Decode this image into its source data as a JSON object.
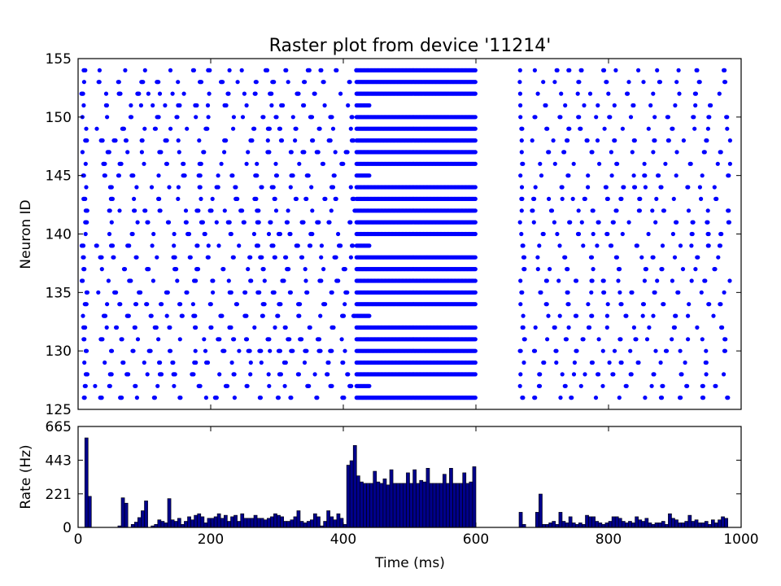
{
  "chart_data": [
    {
      "type": "scatter",
      "title": "Raster plot from device '11214'",
      "xlabel": "",
      "ylabel": "Neuron ID",
      "xlim": [
        0,
        1000
      ],
      "ylim": [
        125,
        155
      ],
      "yticks": [
        "125",
        "130",
        "135",
        "140",
        "145",
        "150",
        "155"
      ],
      "marker_color": "#0000ff",
      "neurons": [
        126,
        127,
        128,
        129,
        130,
        131,
        132,
        133,
        134,
        135,
        136,
        137,
        138,
        139,
        140,
        141,
        142,
        143,
        144,
        145,
        146,
        147,
        148,
        149,
        150,
        151,
        152,
        153,
        154
      ],
      "high_rate_window_ms": [
        420,
        600
      ],
      "silent_window_ms": [
        600,
        665
      ]
    },
    {
      "type": "bar",
      "xlabel": "Time (ms)",
      "ylabel": "Rate (Hz)",
      "xlim": [
        0,
        1000
      ],
      "ylim": [
        0,
        665
      ],
      "yticks": [
        "0",
        "221",
        "443",
        "665"
      ],
      "xticks": [
        "0",
        "200",
        "400",
        "600",
        "800",
        "1000"
      ],
      "bin_width_ms": 5,
      "bar_color": "#00008b",
      "bins": [
        {
          "t": 10,
          "rate": 590
        },
        {
          "t": 15,
          "rate": 205
        },
        {
          "t": 60,
          "rate": 10
        },
        {
          "t": 65,
          "rate": 195
        },
        {
          "t": 70,
          "rate": 160
        },
        {
          "t": 80,
          "rate": 20
        },
        {
          "t": 85,
          "rate": 35
        },
        {
          "t": 90,
          "rate": 65
        },
        {
          "t": 95,
          "rate": 110
        },
        {
          "t": 100,
          "rate": 175
        },
        {
          "t": 110,
          "rate": 10
        },
        {
          "t": 115,
          "rate": 20
        },
        {
          "t": 120,
          "rate": 50
        },
        {
          "t": 125,
          "rate": 40
        },
        {
          "t": 130,
          "rate": 30
        },
        {
          "t": 135,
          "rate": 190
        },
        {
          "t": 140,
          "rate": 50
        },
        {
          "t": 145,
          "rate": 40
        },
        {
          "t": 150,
          "rate": 60
        },
        {
          "t": 155,
          "rate": 20
        },
        {
          "t": 160,
          "rate": 40
        },
        {
          "t": 165,
          "rate": 70
        },
        {
          "t": 170,
          "rate": 50
        },
        {
          "t": 175,
          "rate": 80
        },
        {
          "t": 180,
          "rate": 90
        },
        {
          "t": 185,
          "rate": 70
        },
        {
          "t": 190,
          "rate": 30
        },
        {
          "t": 195,
          "rate": 60
        },
        {
          "t": 200,
          "rate": 60
        },
        {
          "t": 205,
          "rate": 70
        },
        {
          "t": 210,
          "rate": 90
        },
        {
          "t": 215,
          "rate": 60
        },
        {
          "t": 220,
          "rate": 80
        },
        {
          "t": 225,
          "rate": 40
        },
        {
          "t": 230,
          "rate": 70
        },
        {
          "t": 235,
          "rate": 80
        },
        {
          "t": 240,
          "rate": 40
        },
        {
          "t": 245,
          "rate": 90
        },
        {
          "t": 250,
          "rate": 60
        },
        {
          "t": 255,
          "rate": 60
        },
        {
          "t": 260,
          "rate": 60
        },
        {
          "t": 265,
          "rate": 80
        },
        {
          "t": 270,
          "rate": 60
        },
        {
          "t": 275,
          "rate": 60
        },
        {
          "t": 280,
          "rate": 50
        },
        {
          "t": 285,
          "rate": 60
        },
        {
          "t": 290,
          "rate": 70
        },
        {
          "t": 295,
          "rate": 90
        },
        {
          "t": 300,
          "rate": 80
        },
        {
          "t": 305,
          "rate": 70
        },
        {
          "t": 310,
          "rate": 40
        },
        {
          "t": 315,
          "rate": 40
        },
        {
          "t": 320,
          "rate": 50
        },
        {
          "t": 325,
          "rate": 70
        },
        {
          "t": 330,
          "rate": 110
        },
        {
          "t": 335,
          "rate": 40
        },
        {
          "t": 340,
          "rate": 30
        },
        {
          "t": 345,
          "rate": 40
        },
        {
          "t": 350,
          "rate": 50
        },
        {
          "t": 355,
          "rate": 90
        },
        {
          "t": 360,
          "rate": 70
        },
        {
          "t": 365,
          "rate": 10
        },
        {
          "t": 370,
          "rate": 40
        },
        {
          "t": 375,
          "rate": 110
        },
        {
          "t": 380,
          "rate": 70
        },
        {
          "t": 385,
          "rate": 50
        },
        {
          "t": 390,
          "rate": 90
        },
        {
          "t": 395,
          "rate": 60
        },
        {
          "t": 400,
          "rate": 20
        },
        {
          "t": 405,
          "rate": 410
        },
        {
          "t": 410,
          "rate": 440
        },
        {
          "t": 415,
          "rate": 540
        },
        {
          "t": 420,
          "rate": 340
        },
        {
          "t": 425,
          "rate": 300
        },
        {
          "t": 430,
          "rate": 290
        },
        {
          "t": 435,
          "rate": 290
        },
        {
          "t": 440,
          "rate": 290
        },
        {
          "t": 445,
          "rate": 370
        },
        {
          "t": 450,
          "rate": 300
        },
        {
          "t": 455,
          "rate": 290
        },
        {
          "t": 460,
          "rate": 320
        },
        {
          "t": 465,
          "rate": 280
        },
        {
          "t": 470,
          "rate": 380
        },
        {
          "t": 475,
          "rate": 290
        },
        {
          "t": 480,
          "rate": 290
        },
        {
          "t": 485,
          "rate": 290
        },
        {
          "t": 490,
          "rate": 290
        },
        {
          "t": 495,
          "rate": 360
        },
        {
          "t": 500,
          "rate": 290
        },
        {
          "t": 505,
          "rate": 380
        },
        {
          "t": 510,
          "rate": 290
        },
        {
          "t": 515,
          "rate": 310
        },
        {
          "t": 520,
          "rate": 300
        },
        {
          "t": 525,
          "rate": 390
        },
        {
          "t": 530,
          "rate": 290
        },
        {
          "t": 535,
          "rate": 290
        },
        {
          "t": 540,
          "rate": 290
        },
        {
          "t": 545,
          "rate": 290
        },
        {
          "t": 550,
          "rate": 350
        },
        {
          "t": 555,
          "rate": 290
        },
        {
          "t": 560,
          "rate": 390
        },
        {
          "t": 565,
          "rate": 290
        },
        {
          "t": 570,
          "rate": 290
        },
        {
          "t": 575,
          "rate": 290
        },
        {
          "t": 580,
          "rate": 360
        },
        {
          "t": 585,
          "rate": 290
        },
        {
          "t": 590,
          "rate": 300
        },
        {
          "t": 595,
          "rate": 400
        },
        {
          "t": 665,
          "rate": 100
        },
        {
          "t": 670,
          "rate": 20
        },
        {
          "t": 690,
          "rate": 100
        },
        {
          "t": 695,
          "rate": 220
        },
        {
          "t": 700,
          "rate": 20
        },
        {
          "t": 705,
          "rate": 20
        },
        {
          "t": 710,
          "rate": 30
        },
        {
          "t": 715,
          "rate": 40
        },
        {
          "t": 720,
          "rate": 20
        },
        {
          "t": 725,
          "rate": 100
        },
        {
          "t": 730,
          "rate": 40
        },
        {
          "t": 735,
          "rate": 30
        },
        {
          "t": 740,
          "rate": 70
        },
        {
          "t": 745,
          "rate": 30
        },
        {
          "t": 750,
          "rate": 20
        },
        {
          "t": 755,
          "rate": 30
        },
        {
          "t": 760,
          "rate": 20
        },
        {
          "t": 765,
          "rate": 80
        },
        {
          "t": 770,
          "rate": 70
        },
        {
          "t": 775,
          "rate": 70
        },
        {
          "t": 780,
          "rate": 40
        },
        {
          "t": 785,
          "rate": 30
        },
        {
          "t": 790,
          "rate": 20
        },
        {
          "t": 795,
          "rate": 30
        },
        {
          "t": 800,
          "rate": 40
        },
        {
          "t": 805,
          "rate": 70
        },
        {
          "t": 810,
          "rate": 70
        },
        {
          "t": 815,
          "rate": 60
        },
        {
          "t": 820,
          "rate": 40
        },
        {
          "t": 825,
          "rate": 30
        },
        {
          "t": 830,
          "rate": 40
        },
        {
          "t": 835,
          "rate": 30
        },
        {
          "t": 840,
          "rate": 70
        },
        {
          "t": 845,
          "rate": 50
        },
        {
          "t": 850,
          "rate": 40
        },
        {
          "t": 855,
          "rate": 60
        },
        {
          "t": 860,
          "rate": 30
        },
        {
          "t": 865,
          "rate": 20
        },
        {
          "t": 870,
          "rate": 30
        },
        {
          "t": 875,
          "rate": 30
        },
        {
          "t": 880,
          "rate": 40
        },
        {
          "t": 885,
          "rate": 20
        },
        {
          "t": 890,
          "rate": 90
        },
        {
          "t": 895,
          "rate": 60
        },
        {
          "t": 900,
          "rate": 50
        },
        {
          "t": 905,
          "rate": 30
        },
        {
          "t": 910,
          "rate": 30
        },
        {
          "t": 915,
          "rate": 40
        },
        {
          "t": 920,
          "rate": 80
        },
        {
          "t": 925,
          "rate": 40
        },
        {
          "t": 930,
          "rate": 50
        },
        {
          "t": 935,
          "rate": 30
        },
        {
          "t": 940,
          "rate": 30
        },
        {
          "t": 945,
          "rate": 40
        },
        {
          "t": 950,
          "rate": 20
        },
        {
          "t": 955,
          "rate": 50
        },
        {
          "t": 960,
          "rate": 30
        },
        {
          "t": 965,
          "rate": 50
        },
        {
          "t": 970,
          "rate": 70
        },
        {
          "t": 975,
          "rate": 60
        }
      ]
    }
  ]
}
